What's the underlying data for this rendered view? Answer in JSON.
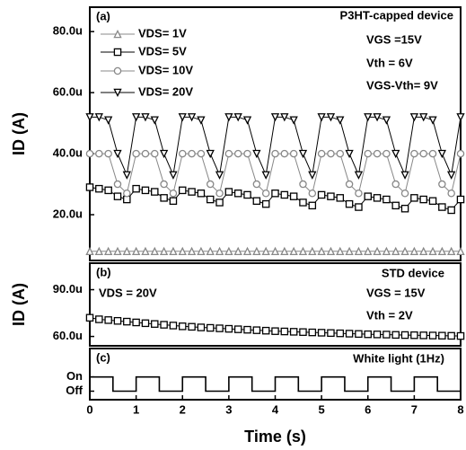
{
  "chart_data": [
    {
      "type": "line",
      "panel_label": "(a)",
      "ylabel": "ID (A)",
      "legend": "upper left",
      "annotations": [
        "P3HT-capped device",
        "VGS =15V",
        "Vth = 6V",
        "VGS-Vth= 9V"
      ],
      "xlim": [
        0,
        8
      ],
      "ylim": [
        5,
        88
      ],
      "yticks": [
        {
          "value": 20,
          "label": "20.0u"
        },
        {
          "value": 40,
          "label": "40.0u"
        },
        {
          "value": 60,
          "label": "60.0u"
        },
        {
          "value": 80,
          "label": "80.0u"
        }
      ],
      "x": [
        0,
        0.2,
        0.4,
        0.6,
        0.8,
        1,
        1.2,
        1.4,
        1.6,
        1.8,
        2,
        2.2,
        2.4,
        2.6,
        2.8,
        3,
        3.2,
        3.4,
        3.6,
        3.8,
        4,
        4.2,
        4.4,
        4.6,
        4.8,
        5,
        5.2,
        5.4,
        5.6,
        5.8,
        6,
        6.2,
        6.4,
        6.6,
        6.8,
        7,
        7.2,
        7.4,
        7.6,
        7.8,
        8
      ],
      "series": [
        {
          "name": "VDS= 1V",
          "color": "#888888",
          "marker": "triangle-up",
          "values": [
            8,
            8,
            8,
            8,
            8,
            8,
            8,
            8,
            8,
            8,
            8,
            8,
            8,
            8,
            8,
            8,
            8,
            8,
            8,
            8,
            8,
            8,
            8,
            8,
            8,
            8,
            8,
            8,
            8,
            8,
            8,
            8,
            8,
            8,
            8,
            8,
            8,
            8,
            8,
            8,
            8
          ]
        },
        {
          "name": "VDS= 5V",
          "color": "#000000",
          "marker": "square",
          "values": [
            29,
            28.5,
            28,
            26,
            25,
            28.5,
            28,
            27.5,
            25.5,
            24.5,
            28,
            27.5,
            27,
            25,
            24,
            27.5,
            27,
            26.5,
            24.5,
            23.5,
            27,
            26.5,
            26,
            24,
            23,
            26.5,
            26,
            25.5,
            23.5,
            22.5,
            26,
            25.5,
            25,
            23,
            22,
            25.5,
            25,
            24.5,
            22.5,
            21.5,
            25
          ]
        },
        {
          "name": "VDS= 10V",
          "color": "#888888",
          "marker": "circle",
          "values": [
            40,
            40,
            40,
            30,
            27,
            40,
            40,
            40,
            30,
            27,
            40,
            40,
            40,
            30,
            27,
            40,
            40,
            40,
            30,
            27,
            40,
            40,
            40,
            30,
            27,
            40,
            40,
            40,
            30,
            27,
            40,
            40,
            40,
            30,
            27,
            40,
            40,
            40,
            30,
            27,
            40
          ]
        },
        {
          "name": "VDS= 20V",
          "color": "#000000",
          "marker": "triangle-down",
          "values": [
            52,
            52,
            51,
            40,
            33,
            52,
            52,
            51,
            40,
            33,
            52,
            52,
            51,
            40,
            33,
            52,
            52,
            51,
            40,
            33,
            52,
            52,
            51,
            40,
            33,
            52,
            52,
            51,
            40,
            33,
            52,
            52,
            51,
            40,
            33,
            52,
            52,
            51,
            40,
            33,
            52
          ]
        }
      ]
    },
    {
      "type": "line",
      "panel_label": "(b)",
      "ylabel": "ID (A)",
      "annotations": [
        "STD device",
        "VDS = 20V",
        "VGS = 15V",
        "Vth = 2V"
      ],
      "xlim": [
        0,
        8
      ],
      "ylim": [
        54,
        107
      ],
      "yticks": [
        {
          "value": 60,
          "label": "60.0u"
        },
        {
          "value": 90,
          "label": "90.0u"
        }
      ],
      "x": [
        0,
        0.2,
        0.4,
        0.6,
        0.8,
        1,
        1.2,
        1.4,
        1.6,
        1.8,
        2,
        2.2,
        2.4,
        2.6,
        2.8,
        3,
        3.2,
        3.4,
        3.6,
        3.8,
        4,
        4.2,
        4.4,
        4.6,
        4.8,
        5,
        5.2,
        5.4,
        5.6,
        5.8,
        6,
        6.2,
        6.4,
        6.6,
        6.8,
        7,
        7.2,
        7.4,
        7.6,
        7.8,
        8
      ],
      "series": [
        {
          "color": "#000000",
          "marker": "square",
          "values": [
            72,
            71,
            70.5,
            70,
            69.5,
            69,
            68.5,
            68,
            67.5,
            67,
            66.5,
            66.2,
            65.8,
            65.5,
            65.2,
            64.9,
            64.6,
            64.3,
            64,
            63.7,
            63.4,
            63.2,
            63,
            62.8,
            62.6,
            62.4,
            62.2,
            62,
            61.8,
            61.6,
            61.4,
            61.3,
            61.2,
            61,
            60.9,
            60.8,
            60.7,
            60.6,
            60.5,
            60.4,
            60.3
          ]
        }
      ]
    },
    {
      "type": "line",
      "panel_label": "(c)",
      "xlabel": "Time (s)",
      "annotations": [
        "White light (1Hz)"
      ],
      "xlim": [
        0,
        8
      ],
      "xticks": [
        0,
        1,
        2,
        3,
        4,
        5,
        6,
        7,
        8
      ],
      "ylim": [
        -0.6,
        3
      ],
      "yticks": [
        {
          "value": 0,
          "label": "Off"
        },
        {
          "value": 1,
          "label": "On"
        }
      ],
      "x": [
        0,
        0.5,
        0.5,
        1,
        1,
        1.5,
        1.5,
        2,
        2,
        2.5,
        2.5,
        3,
        3,
        3.5,
        3.5,
        4,
        4,
        4.5,
        4.5,
        5,
        5,
        5.5,
        5.5,
        6,
        6,
        6.5,
        6.5,
        7,
        7,
        7.5,
        7.5,
        8
      ],
      "series": [
        {
          "color": "#000000",
          "values": [
            1,
            1,
            0,
            0,
            1,
            1,
            0,
            0,
            1,
            1,
            0,
            0,
            1,
            1,
            0,
            0,
            1,
            1,
            0,
            0,
            1,
            1,
            0,
            0,
            1,
            1,
            0,
            0,
            1,
            1,
            0,
            0
          ]
        }
      ]
    }
  ]
}
